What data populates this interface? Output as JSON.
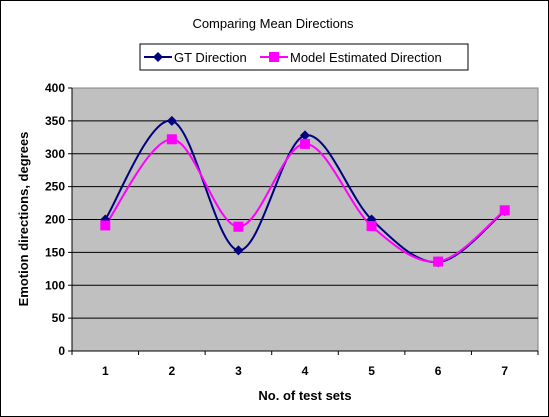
{
  "chart_data": {
    "type": "line",
    "title": "Comparing Mean Directions",
    "xlabel": "No. of test sets",
    "ylabel": "Emotion directions, degrees",
    "categories": [
      "1",
      "2",
      "3",
      "4",
      "5",
      "6",
      "7"
    ],
    "ylim": [
      0,
      400
    ],
    "yticks": [
      "0",
      "50",
      "100",
      "150",
      "200",
      "250",
      "300",
      "350",
      "400"
    ],
    "grid": "horizontal",
    "legend_position": "top",
    "plot_background": "#c0c0c0",
    "series": [
      {
        "name": "GT Direction",
        "color": "#000080",
        "marker": "diamond",
        "values": [
          200,
          350,
          153,
          328,
          200,
          135,
          213
        ]
      },
      {
        "name": "Model Estimated Direction",
        "color": "#ff00ff",
        "marker": "square",
        "values": [
          191,
          322,
          189,
          315,
          190,
          136,
          214
        ]
      }
    ]
  }
}
